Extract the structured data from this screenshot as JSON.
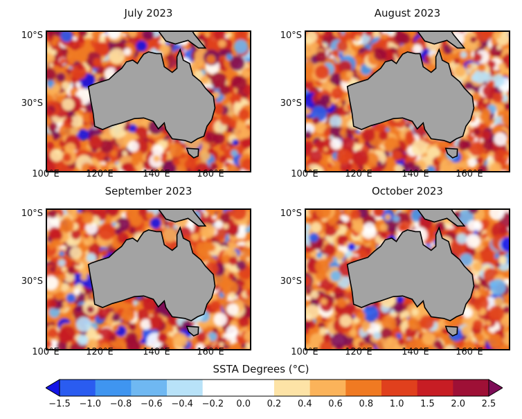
{
  "panels": [
    {
      "title": "July 2023",
      "seed": 11
    },
    {
      "title": "August 2023",
      "seed": 23
    },
    {
      "title": "September 2023",
      "seed": 37
    },
    {
      "title": "October 2023",
      "seed": 53
    }
  ],
  "map": {
    "lon_range": [
      100,
      165
    ],
    "lat_range": [
      -5,
      -48
    ],
    "y_ticks": [
      "10°S",
      "30°S"
    ],
    "x_ticks": [
      "100°E",
      "120°E",
      "140°E",
      "160°E"
    ],
    "land_color": "#a3a3a3"
  },
  "colorbar": {
    "title": "SSTA Degrees (°C)",
    "levels": [
      "-1.5",
      "-1.0",
      "-0.8",
      "-0.6",
      "-0.4",
      "-0.2",
      "0.0",
      "0.2",
      "0.4",
      "0.6",
      "0.8",
      "1.0",
      "1.5",
      "2.0",
      "2.5"
    ],
    "colors": [
      "#1414e6",
      "#2a5cf0",
      "#3f95f0",
      "#6fb8f2",
      "#b8e2f8",
      "#ffffff",
      "#ffffff",
      "#fde3a6",
      "#fbb35a",
      "#f07a22",
      "#e0401d",
      "#c71d24",
      "#9e1036",
      "#7d0c56"
    ]
  }
}
